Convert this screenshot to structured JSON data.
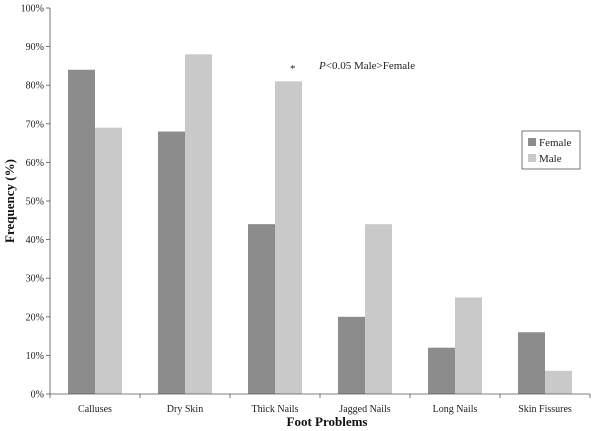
{
  "chart_data": {
    "type": "bar",
    "categories": [
      "Calluses",
      "Dry Skin",
      "Thick Nails",
      "Jagged Nails",
      "Long Nails",
      "Skin Fissures"
    ],
    "series": [
      {
        "name": "Female",
        "values": [
          84,
          68,
          44,
          20,
          12,
          16
        ],
        "color": "#8c8c8c"
      },
      {
        "name": "Male",
        "values": [
          69,
          88,
          81,
          44,
          25,
          6
        ],
        "color": "#c9c9c9"
      }
    ],
    "ylim": [
      0,
      100
    ],
    "yticks": [
      0,
      10,
      20,
      30,
      40,
      50,
      60,
      70,
      80,
      90,
      100
    ],
    "ytick_labels": [
      "0%",
      "10%",
      "20%",
      "30%",
      "40%",
      "50%",
      "60%",
      "70%",
      "80%",
      "90%",
      "100%"
    ],
    "xlabel": "Foot Problems",
    "ylabel": "Frequency (%)",
    "grid": false,
    "legend_position": "right",
    "annotation": {
      "category": "Thick Nails",
      "symbol": "*",
      "p_label": "P",
      "text": "<0.05 Male>Female"
    }
  }
}
